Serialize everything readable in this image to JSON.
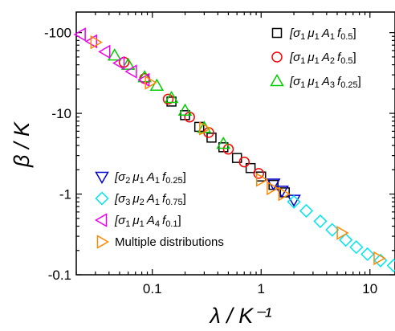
{
  "chart_data": {
    "type": "scatter",
    "x_scale": "log",
    "y_scale": "log-negative",
    "xlim": [
      0.02,
      17
    ],
    "ylim": [
      -0.1,
      -180
    ],
    "xlabel": "λ / K⁻¹",
    "ylabel": "β / K",
    "x_ticks": [
      {
        "value": 0.1,
        "label": "0.1"
      },
      {
        "value": 1,
        "label": "1"
      },
      {
        "value": 10,
        "label": "10"
      }
    ],
    "y_ticks": [
      {
        "value": -100,
        "label": "-100"
      },
      {
        "value": -10,
        "label": "-10"
      },
      {
        "value": -1,
        "label": "-1"
      },
      {
        "value": -0.1,
        "label": "-0.1"
      }
    ],
    "legend_upper": {
      "placement": "top-right",
      "entries": [
        {
          "series": 0,
          "parts": [
            [
              "[σ",
              "it"
            ],
            [
              "1 ",
              "sub"
            ],
            [
              "μ",
              "it"
            ],
            [
              "1 ",
              "sub"
            ],
            [
              "A",
              "it"
            ],
            [
              "1 ",
              "sub"
            ],
            [
              "f",
              "it"
            ],
            [
              "0.5",
              "sub"
            ],
            [
              "]",
              ""
            ]
          ]
        },
        {
          "series": 1,
          "parts": [
            [
              "[σ",
              "it"
            ],
            [
              "1 ",
              "sub"
            ],
            [
              "μ",
              "it"
            ],
            [
              "1 ",
              "sub"
            ],
            [
              "A",
              "it"
            ],
            [
              "2 ",
              "sub"
            ],
            [
              "f",
              "it"
            ],
            [
              "0.5",
              "sub"
            ],
            [
              "]",
              ""
            ]
          ]
        },
        {
          "series": 2,
          "parts": [
            [
              "[σ",
              "it"
            ],
            [
              "1 ",
              "sub"
            ],
            [
              "μ",
              "it"
            ],
            [
              "1 ",
              "sub"
            ],
            [
              "A",
              "it"
            ],
            [
              "3 ",
              "sub"
            ],
            [
              "f",
              "it"
            ],
            [
              "0.25",
              "sub"
            ],
            [
              "]",
              ""
            ]
          ]
        }
      ]
    },
    "legend_lower": {
      "placement": "bottom-left",
      "entries": [
        {
          "series": 3,
          "parts": [
            [
              "[σ",
              "it"
            ],
            [
              "2 ",
              "sub"
            ],
            [
              "μ",
              "it"
            ],
            [
              "1 ",
              "sub"
            ],
            [
              "A",
              "it"
            ],
            [
              "1 ",
              "sub"
            ],
            [
              "f",
              "it"
            ],
            [
              "0.25",
              "sub"
            ],
            [
              "]",
              ""
            ]
          ]
        },
        {
          "series": 4,
          "parts": [
            [
              "[σ",
              "it"
            ],
            [
              "3 ",
              "sub"
            ],
            [
              "μ",
              "it"
            ],
            [
              "2 ",
              "sub"
            ],
            [
              "A",
              "it"
            ],
            [
              "1 ",
              "sub"
            ],
            [
              "f",
              "it"
            ],
            [
              "0.75",
              "sub"
            ],
            [
              "]",
              ""
            ]
          ]
        },
        {
          "series": 5,
          "parts": [
            [
              "[σ",
              "it"
            ],
            [
              "1 ",
              "sub"
            ],
            [
              "μ",
              "it"
            ],
            [
              "1 ",
              "sub"
            ],
            [
              "A",
              "it"
            ],
            [
              "4 ",
              "sub"
            ],
            [
              "f",
              "it"
            ],
            [
              "0.1",
              "sub"
            ],
            [
              "]",
              ""
            ]
          ]
        },
        {
          "series": 6,
          "parts": [
            [
              "Multiple distributions",
              ""
            ]
          ]
        }
      ]
    },
    "series": [
      {
        "marker": "square",
        "color": "#000000",
        "x": [
          0.15,
          0.2,
          0.27,
          0.35,
          0.45,
          0.6,
          0.8,
          1.0,
          1.3,
          1.65
        ],
        "y": [
          -14,
          -9.5,
          -6.8,
          -5.0,
          -3.8,
          -2.8,
          -2.1,
          -1.65,
          -1.3,
          -1.05
        ]
      },
      {
        "marker": "circle",
        "color": "#ff0000",
        "x": [
          0.055,
          0.085,
          0.14,
          0.22,
          0.33,
          0.5,
          0.7,
          0.95
        ],
        "y": [
          -43,
          -27,
          -15,
          -9.0,
          -5.8,
          -3.6,
          -2.5,
          -1.8
        ]
      },
      {
        "marker": "triangle-up",
        "color": "#00cc00",
        "x": [
          0.045,
          0.06,
          0.085,
          0.11,
          0.15,
          0.2,
          0.3,
          0.45
        ],
        "y": [
          -52,
          -40,
          -28,
          -22,
          -15.5,
          -10.8,
          -6.6,
          -4.2
        ]
      },
      {
        "marker": "triangle-down",
        "color": "#0000cc",
        "x": [
          1.3,
          1.55,
          2.0
        ],
        "y": [
          -1.35,
          -1.1,
          -0.85
        ]
      },
      {
        "marker": "diamond",
        "color": "#00e5ee",
        "x": [
          2.0,
          2.6,
          3.5,
          4.5,
          6.0,
          7.5,
          9.5,
          12.5,
          16.5
        ],
        "y": [
          -0.8,
          -0.62,
          -0.46,
          -0.36,
          -0.27,
          -0.22,
          -0.18,
          -0.15,
          -0.13
        ]
      },
      {
        "marker": "triangle-left",
        "color": "#ee00ee",
        "x": [
          0.022,
          0.028,
          0.037,
          0.05,
          0.065,
          0.085
        ],
        "y": [
          -95,
          -78,
          -58,
          -42,
          -33,
          -26
        ]
      },
      {
        "marker": "triangle-right",
        "color": "#ff8800",
        "x": [
          0.03,
          0.095,
          0.3,
          1.0,
          1.25,
          1.6,
          5.5,
          12
        ],
        "y": [
          -76,
          -24,
          -6.5,
          -1.5,
          -1.18,
          -1.0,
          -0.33,
          -0.16
        ]
      }
    ]
  }
}
